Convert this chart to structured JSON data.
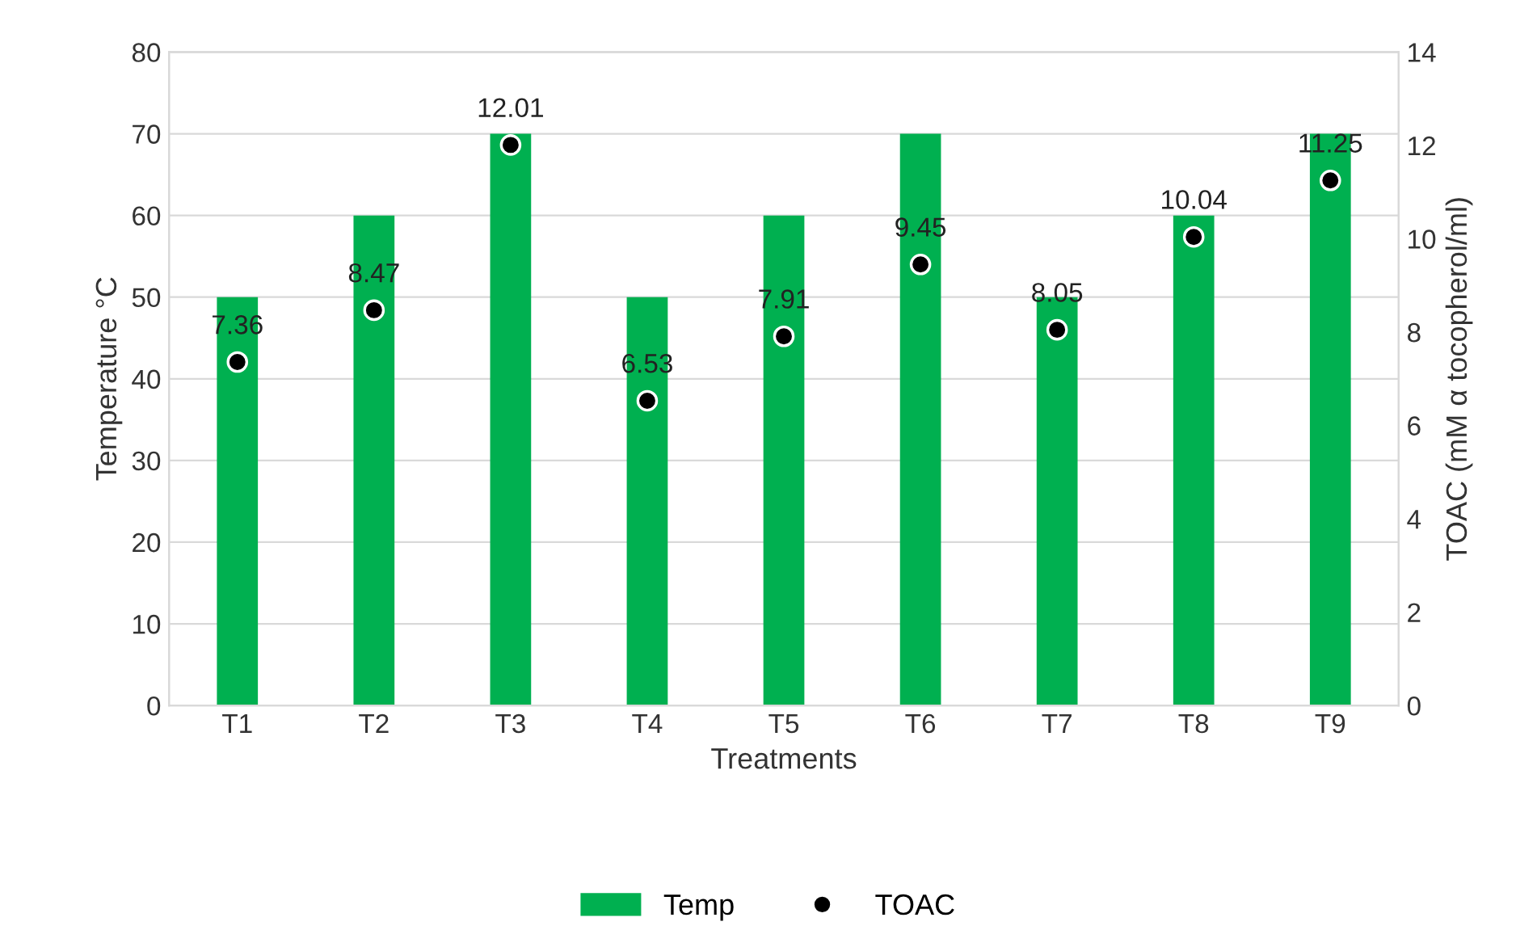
{
  "chart_data": {
    "type": "bar",
    "xlabel": "Treatments",
    "ylabel": "Temperature °C",
    "y2label": "TOAC (mM α tocopherol/ml)",
    "categories": [
      "T1",
      "T2",
      "T3",
      "T4",
      "T5",
      "T6",
      "T7",
      "T8",
      "T9"
    ],
    "series": [
      {
        "name": "Temp",
        "color": "#00b050",
        "values": [
          50,
          60,
          70,
          50,
          60,
          70,
          50,
          60,
          70
        ]
      },
      {
        "name": "TOAC",
        "type": "scatter",
        "axis": "y2",
        "color": "#000000",
        "marker": "circle",
        "values": [
          7.36,
          8.47,
          12.01,
          6.53,
          7.91,
          9.45,
          8.05,
          10.04,
          11.25
        ],
        "value_labels": [
          "7.36",
          "8.47",
          "12.01",
          "6.53",
          "7.91",
          "9.45",
          "8.05",
          "10.04",
          "11.25"
        ]
      }
    ],
    "ylim": [
      0,
      80
    ],
    "yticks": [
      0,
      10,
      20,
      30,
      40,
      50,
      60,
      70,
      80
    ],
    "y2lim": [
      0,
      14
    ],
    "y2ticks": [
      0,
      2,
      4,
      6,
      8,
      10,
      12,
      14
    ],
    "grid": "y",
    "legend": "bottom"
  }
}
